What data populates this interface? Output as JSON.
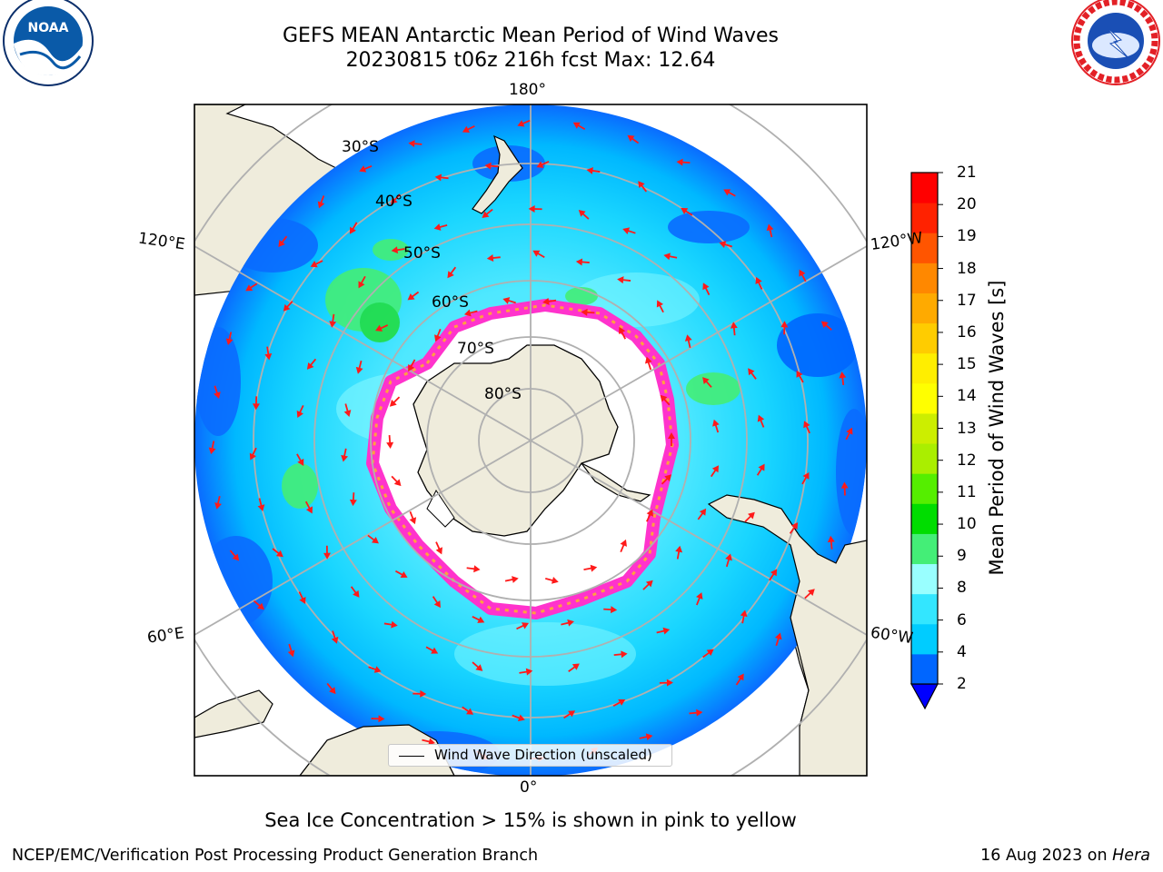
{
  "title": {
    "line1": "GEFS MEAN Antarctic Mean Period of Wind Waves",
    "line2": "20230815 t06z 216h fcst   Max: 12.64"
  },
  "logos": {
    "noaa": {
      "text": "NOAA",
      "icon": "noaa-logo-icon",
      "colors": {
        "blue": "#0a5aa8",
        "dark": "#0b2f6b"
      }
    },
    "nws": {
      "icon": "nws-logo-icon",
      "ring_text": "NATIONAL WEATHER SERVICE",
      "colors": {
        "red": "#e32026",
        "blue": "#1a4fb5"
      }
    }
  },
  "map": {
    "projection": "south-polar-stereographic",
    "longitude_labels": {
      "top": "180°",
      "bottom": "0°",
      "left_upper": "120°E",
      "left_lower": "60°E",
      "right_upper": "120°W",
      "right_lower": "60°W"
    },
    "latitude_labels": [
      "30°S",
      "40°S",
      "50°S",
      "60°S",
      "70°S",
      "80°S"
    ],
    "legend": {
      "label": "Wind Wave Direction (unscaled)"
    },
    "arrow_color": "#ff1a1a",
    "ice_edge_colors": [
      "#ff33cc",
      "#ffa040",
      "#ffe020"
    ],
    "land_color": "#efecdc",
    "grid_color": "#b0b0b0"
  },
  "colorbar": {
    "label": "Mean Period of Wind Waves [s]",
    "ticks": [
      "2",
      "4",
      "6",
      "8",
      "9",
      "10",
      "11",
      "12",
      "13",
      "14",
      "15",
      "16",
      "17",
      "18",
      "19",
      "20",
      "21"
    ],
    "colors": [
      "#0066ff",
      "#00ccff",
      "#33e6ff",
      "#99ffff",
      "#44ee77",
      "#00dd00",
      "#55ee00",
      "#aaee00",
      "#ccee00",
      "#ffff00",
      "#ffee00",
      "#ffcc00",
      "#ffaa00",
      "#ff8800",
      "#ff5500",
      "#ff2200",
      "#ff0000"
    ],
    "under_color": "#0000ff"
  },
  "note": "Sea Ice Concentration > 15% is shown in pink to yellow",
  "footer": {
    "left": "NCEP/EMC/Verification Post Processing Product Generation Branch",
    "date": "16 Aug 2023 on ",
    "machine": "Hera"
  }
}
